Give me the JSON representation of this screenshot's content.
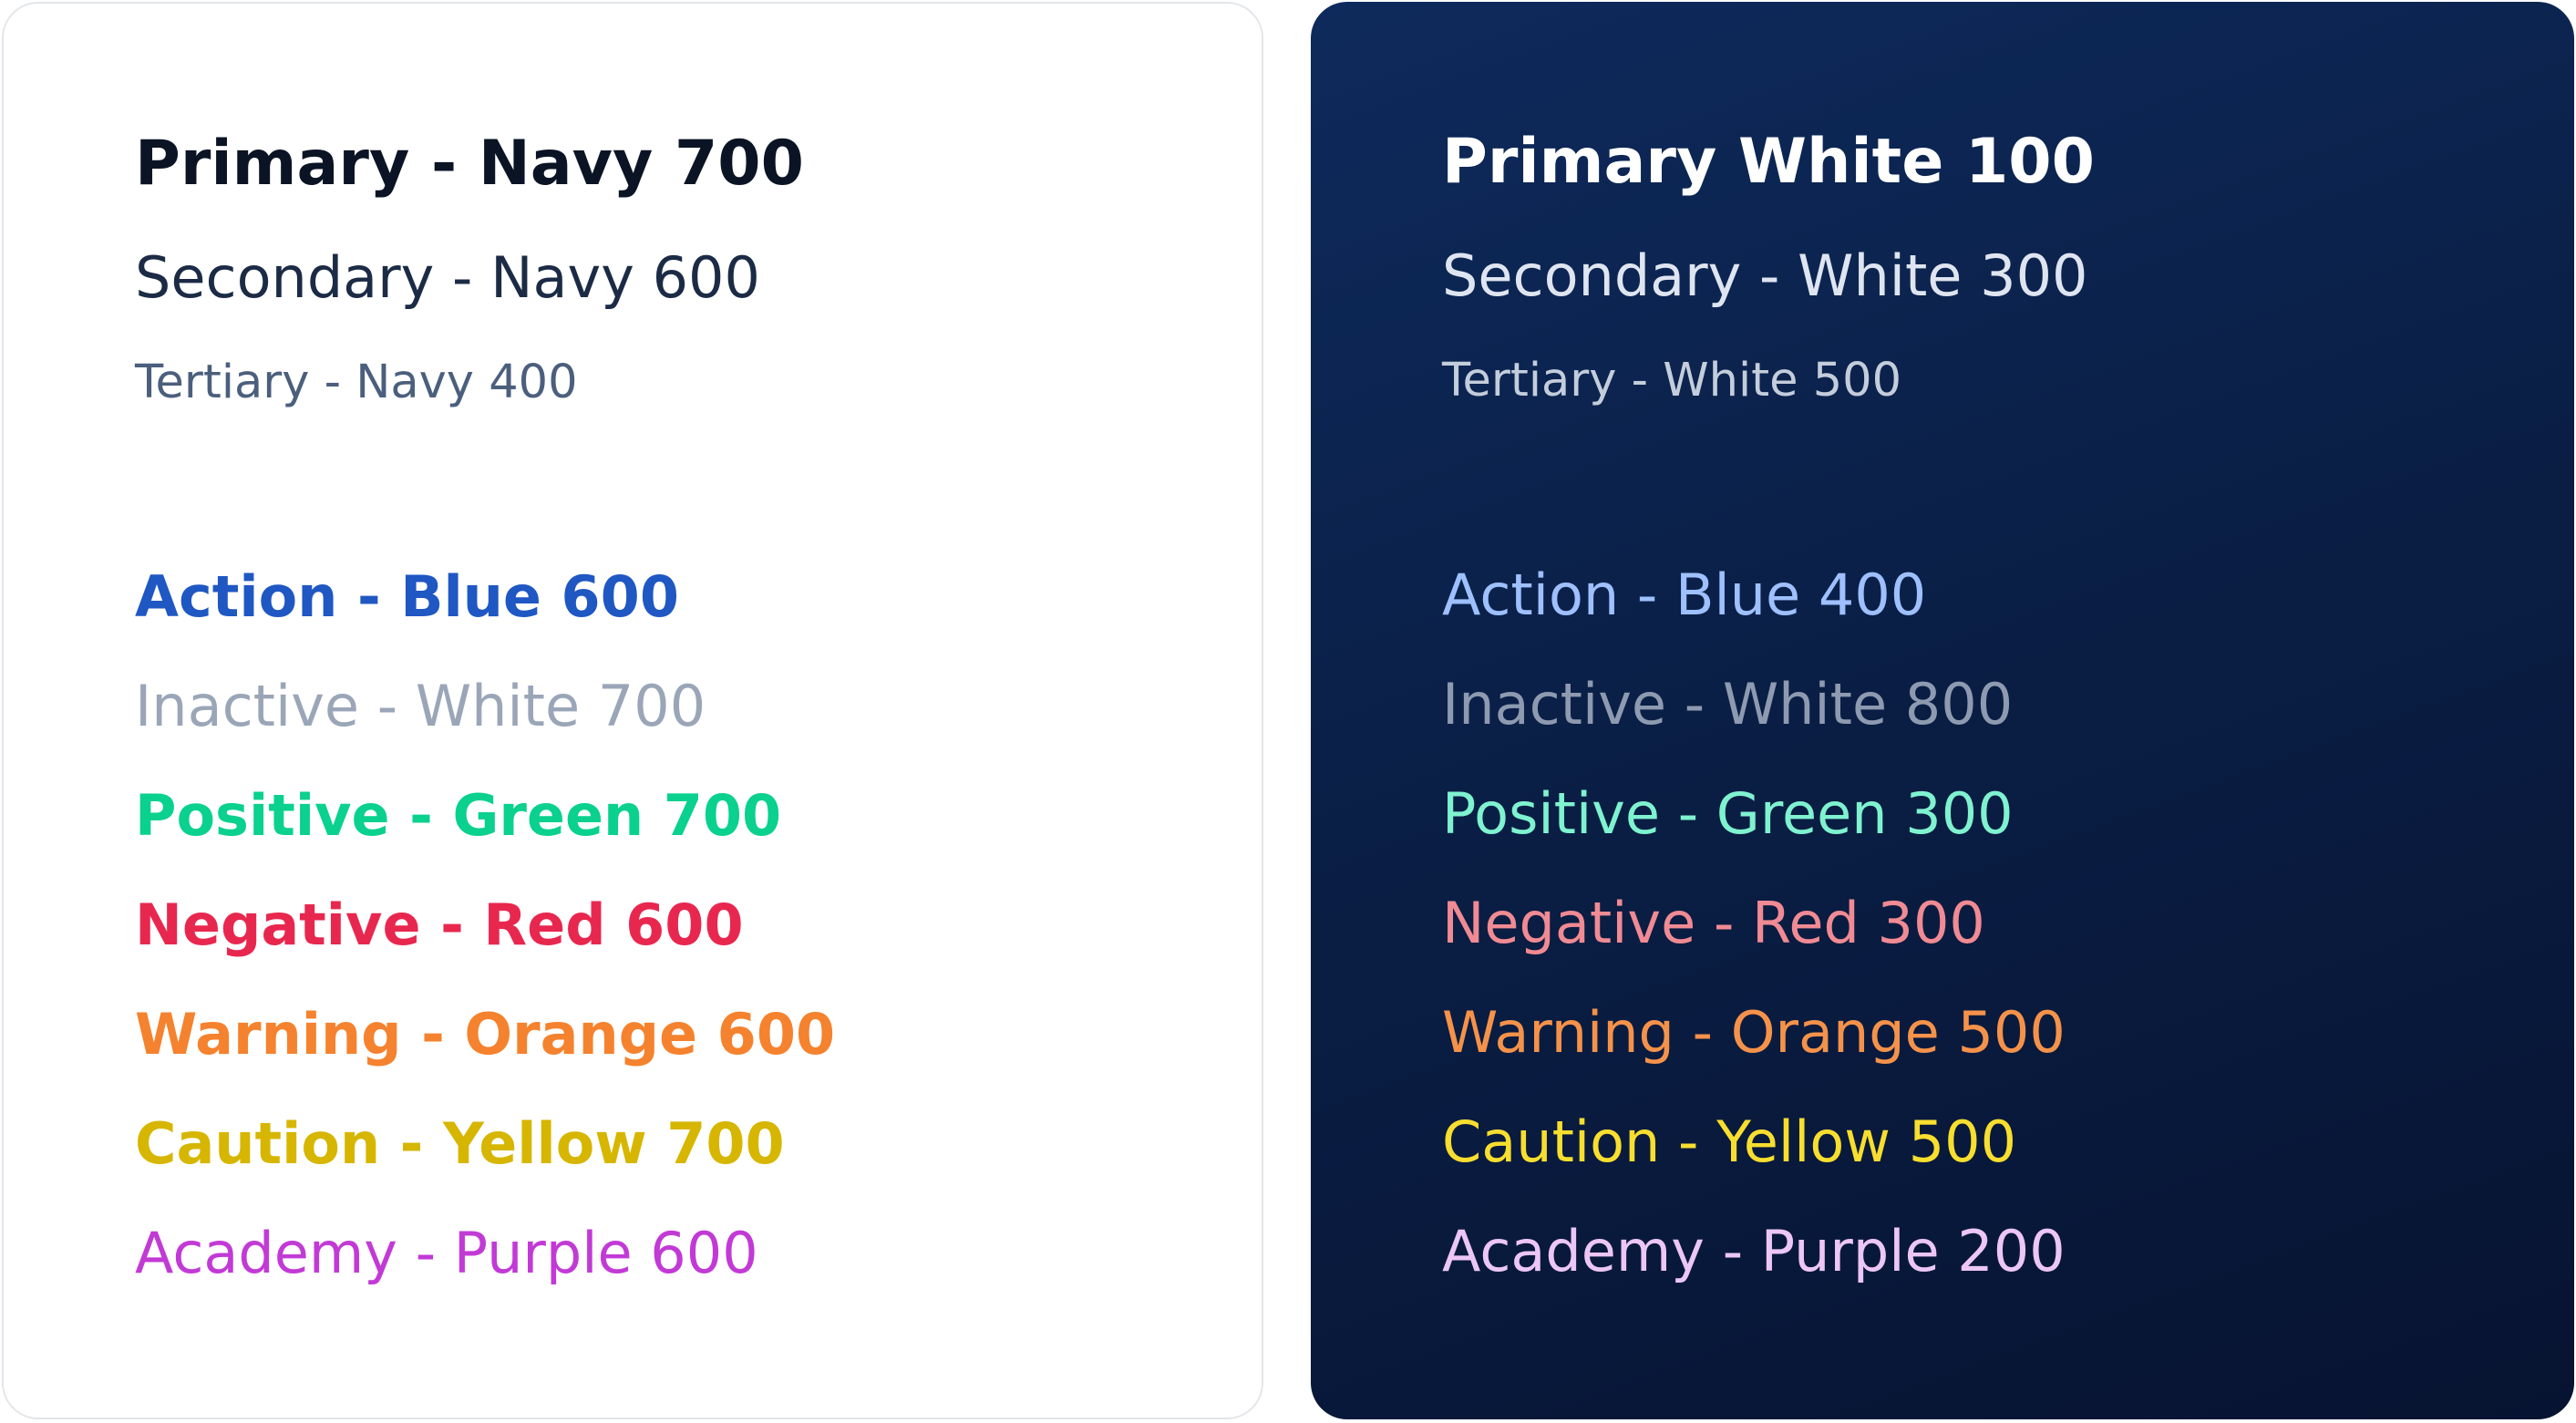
{
  "light": {
    "primary": {
      "text": "Primary - Navy 700",
      "color": "#0b1424"
    },
    "secondary": {
      "text": "Secondary - Navy 600",
      "color": "#1c2b45"
    },
    "tertiary": {
      "text": "Tertiary - Navy 400",
      "color": "#4b5f7d"
    },
    "statuses": [
      {
        "text": "Action - Blue 600",
        "color": "#1f57c3"
      },
      {
        "text": "Inactive - White 700",
        "color": "#9aa6b8"
      },
      {
        "text": "Positive - Green 700",
        "color": "#0ad18d"
      },
      {
        "text": "Negative - Red 600",
        "color": "#e8274f"
      },
      {
        "text": "Warning - Orange 600",
        "color": "#f5822e"
      },
      {
        "text": "Caution - Yellow 700",
        "color": "#d6b600"
      },
      {
        "text": "Academy - Purple 600",
        "color": "#c23ad6"
      }
    ]
  },
  "dark": {
    "primary": {
      "text": "Primary White 100",
      "color": "#ffffff"
    },
    "secondary": {
      "text": "Secondary - White 300",
      "color": "#dfe5f0"
    },
    "tertiary": {
      "text": "Tertiary - White 500",
      "color": "#c4cddb"
    },
    "statuses": [
      {
        "text": "Action - Blue 400",
        "color": "#9ec0ff"
      },
      {
        "text": "Inactive - White 800",
        "color": "#8e9ab0"
      },
      {
        "text": "Positive - Green 300",
        "color": "#7ff2d0"
      },
      {
        "text": "Negative - Red 300",
        "color": "#f08a93"
      },
      {
        "text": "Warning - Orange 500",
        "color": "#f5924a"
      },
      {
        "text": "Caution - Yellow 500",
        "color": "#f8de2e"
      },
      {
        "text": "Academy - Purple 200",
        "color": "#ecc6f5"
      }
    ]
  }
}
